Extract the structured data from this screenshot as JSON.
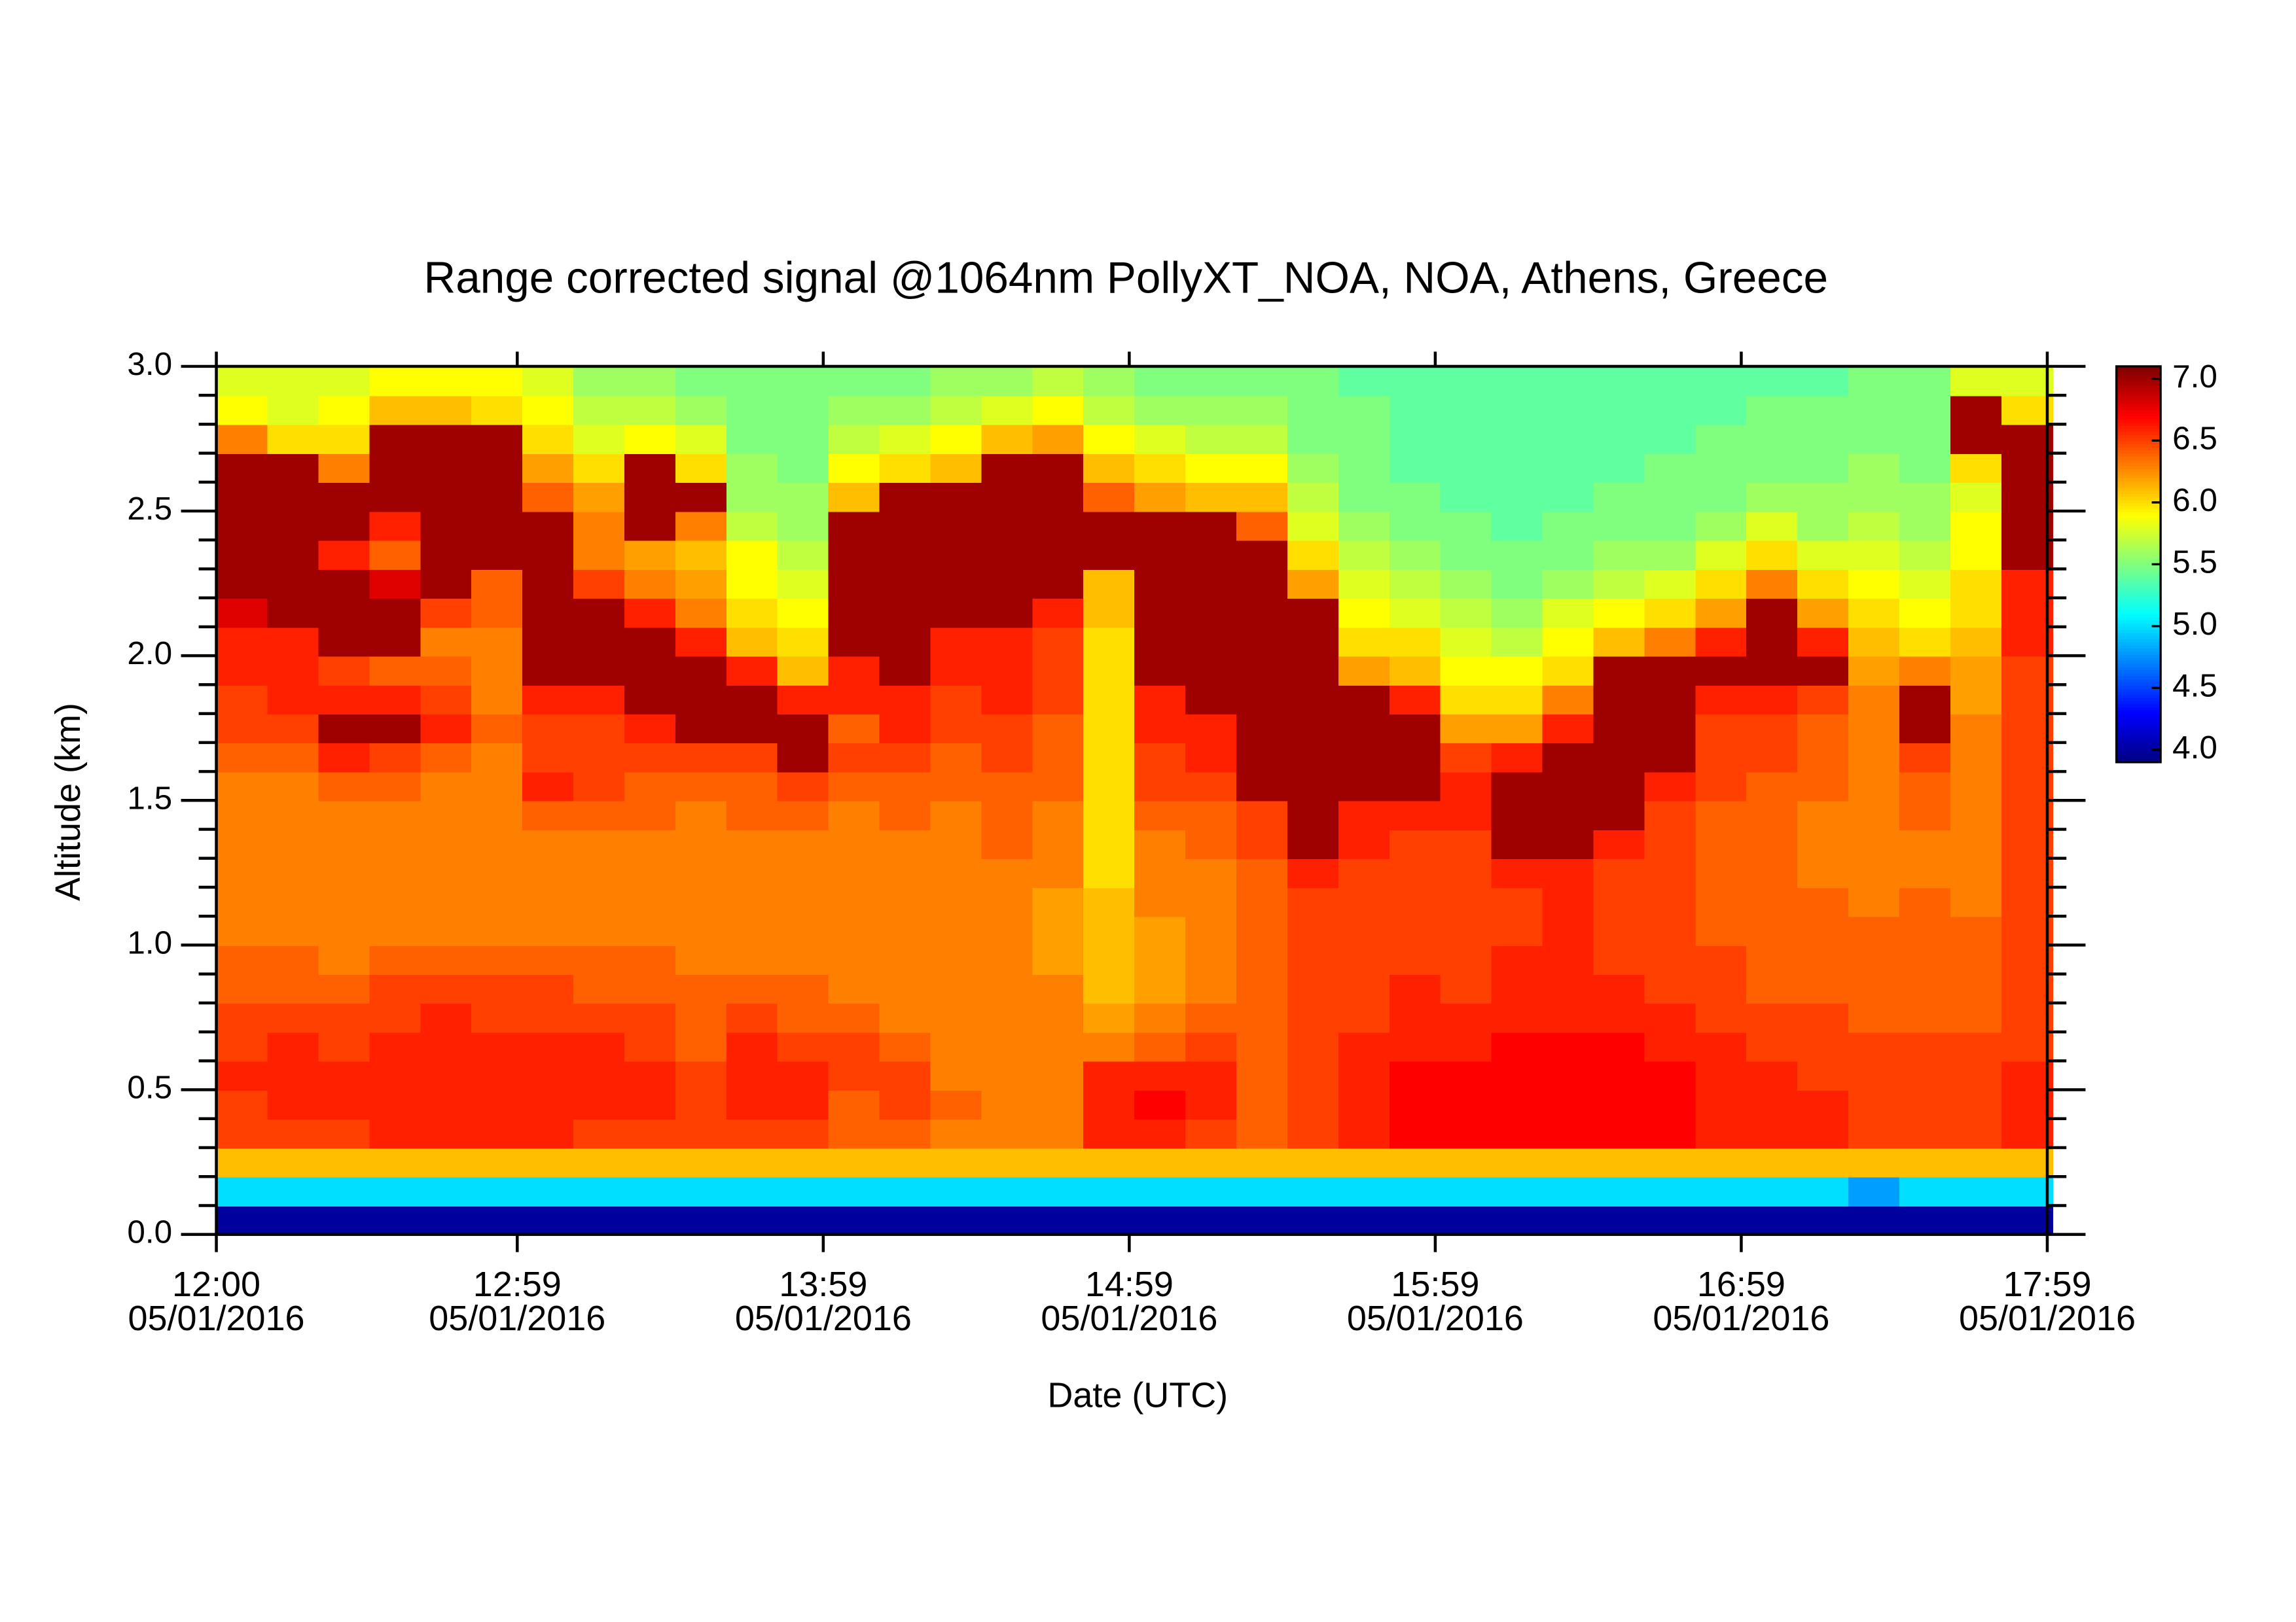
{
  "chart_data": {
    "type": "heatmap",
    "title": "Range corrected signal @1064nm  PollyXT_NOA, NOA, Athens, Greece",
    "xlabel": "Date (UTC)",
    "ylabel": "Altitude (km)",
    "colormap": "jet",
    "xlim": [
      0,
      359
    ],
    "xticks": [
      {
        "value": 0,
        "label": "12:00\n05/01/2016"
      },
      {
        "value": 59,
        "label": "12:59\n05/01/2016"
      },
      {
        "value": 119,
        "label": "13:59\n05/01/2016"
      },
      {
        "value": 179,
        "label": "14:59\n05/01/2016"
      },
      {
        "value": 239,
        "label": "15:59\n05/01/2016"
      },
      {
        "value": 299,
        "label": "16:59\n05/01/2016"
      },
      {
        "value": 359,
        "label": "17:59\n05/01/2016"
      }
    ],
    "ylim": [
      0,
      3.0
    ],
    "yticks": [
      {
        "value": 0,
        "label": "0.0"
      },
      0.5,
      {
        "value": 1,
        "label": "1.0"
      },
      1.5,
      {
        "value": 2,
        "label": "2.0"
      },
      2.5,
      {
        "value": 3,
        "label": "3.0"
      }
    ],
    "yminorticks": [
      0.1,
      0.2,
      0.3,
      0.4,
      0.6,
      0.7,
      0.8,
      0.9,
      1.1,
      1.2,
      1.3,
      1.4,
      1.6,
      1.7,
      1.8,
      1.9,
      2.1,
      2.2,
      2.3,
      2.4,
      2.6,
      2.7,
      2.8,
      2.9
    ],
    "clim": [
      3.9,
      7.1
    ],
    "cticks": [
      {
        "value": 4,
        "label": "4.0"
      },
      4.5,
      {
        "value": 5,
        "label": "5.0"
      },
      5.5,
      {
        "value": 6,
        "label": "6.0"
      },
      6.5,
      {
        "value": 7,
        "label": "7.0"
      }
    ],
    "x": [
      5,
      15,
      25,
      35,
      45,
      55,
      65,
      75,
      85,
      95,
      105,
      115,
      125,
      135,
      145,
      155,
      165,
      175,
      185,
      195,
      205,
      215,
      225,
      235,
      245,
      255,
      265,
      275,
      285,
      295,
      305,
      315,
      325,
      335,
      345,
      355
    ],
    "y": [
      0.05,
      0.15,
      0.25,
      0.35,
      0.45,
      0.55,
      0.65,
      0.75,
      0.85,
      0.95,
      1.05,
      1.15,
      1.25,
      1.35,
      1.45,
      1.55,
      1.65,
      1.75,
      1.85,
      1.95,
      2.05,
      2.15,
      2.25,
      2.35,
      2.45,
      2.55,
      2.65,
      2.75,
      2.85,
      2.95
    ],
    "values": [
      [
        4.0,
        5.0,
        6.1,
        6.5,
        6.5,
        6.6,
        6.5,
        6.5,
        6.4,
        6.4,
        6.3,
        6.3,
        6.3,
        6.3,
        6.3,
        6.3,
        6.4,
        6.5,
        6.5,
        6.6,
        6.6,
        6.8,
        7.0,
        7.0,
        7.0,
        7.0,
        7.0,
        6.3,
        5.9,
        5.8
      ],
      [
        4.0,
        5.0,
        6.1,
        6.5,
        6.6,
        6.6,
        6.6,
        6.5,
        6.4,
        6.4,
        6.3,
        6.3,
        6.3,
        6.3,
        6.3,
        6.3,
        6.4,
        6.5,
        6.6,
        6.6,
        6.6,
        7.0,
        7.0,
        7.0,
        7.0,
        7.0,
        7.0,
        6.0,
        5.8,
        5.8
      ],
      [
        4.0,
        5.0,
        6.1,
        6.5,
        6.6,
        6.6,
        6.5,
        6.5,
        6.4,
        6.3,
        6.3,
        6.3,
        6.3,
        6.3,
        6.3,
        6.4,
        6.6,
        7.0,
        6.6,
        6.5,
        7.0,
        7.0,
        7.0,
        6.6,
        7.0,
        7.0,
        6.3,
        6.0,
        5.9,
        5.8
      ],
      [
        4.0,
        5.0,
        6.1,
        6.6,
        6.6,
        6.6,
        6.6,
        6.5,
        6.5,
        6.4,
        6.3,
        6.3,
        6.3,
        6.3,
        6.3,
        6.4,
        6.5,
        7.0,
        6.6,
        6.4,
        7.0,
        7.0,
        6.8,
        6.4,
        6.6,
        7.0,
        7.0,
        7.0,
        6.1,
        5.9
      ],
      [
        4.0,
        5.0,
        6.1,
        6.6,
        6.6,
        6.6,
        6.6,
        6.6,
        6.5,
        6.4,
        6.3,
        6.3,
        6.3,
        6.3,
        6.3,
        6.3,
        6.4,
        6.6,
        6.5,
        6.4,
        6.3,
        6.5,
        7.0,
        7.0,
        7.0,
        7.0,
        7.0,
        7.0,
        6.1,
        5.9
      ],
      [
        4.0,
        5.0,
        6.1,
        6.6,
        6.6,
        6.6,
        6.6,
        6.5,
        6.5,
        6.4,
        6.3,
        6.3,
        6.3,
        6.3,
        6.3,
        6.3,
        6.3,
        6.4,
        6.3,
        6.3,
        6.3,
        6.4,
        6.4,
        7.0,
        7.0,
        7.0,
        7.0,
        7.0,
        6.0,
        5.9
      ],
      [
        4.0,
        5.0,
        6.1,
        6.6,
        6.6,
        6.6,
        6.6,
        6.5,
        6.5,
        6.4,
        6.3,
        6.3,
        6.3,
        6.3,
        6.4,
        6.6,
        6.5,
        6.5,
        6.6,
        7.0,
        7.0,
        7.0,
        7.0,
        7.0,
        7.0,
        6.4,
        6.2,
        6.0,
        5.9,
        5.8
      ],
      [
        4.0,
        5.0,
        6.1,
        6.5,
        6.6,
        6.6,
        6.6,
        6.5,
        6.4,
        6.4,
        6.3,
        6.3,
        6.3,
        6.3,
        6.4,
        6.5,
        6.5,
        6.5,
        6.6,
        7.0,
        7.0,
        7.0,
        6.5,
        6.3,
        6.3,
        6.2,
        6.0,
        5.8,
        5.7,
        5.6
      ],
      [
        4.0,
        5.0,
        6.1,
        6.5,
        6.6,
        6.6,
        6.5,
        6.5,
        6.4,
        6.4,
        6.3,
        6.3,
        6.3,
        6.3,
        6.4,
        6.4,
        6.5,
        6.6,
        7.0,
        7.0,
        7.0,
        6.6,
        6.3,
        6.2,
        7.0,
        7.0,
        7.0,
        5.9,
        5.7,
        5.6
      ],
      [
        4.0,
        5.0,
        6.1,
        6.5,
        6.5,
        6.5,
        6.4,
        6.4,
        6.4,
        6.3,
        6.3,
        6.3,
        6.3,
        6.3,
        6.3,
        6.4,
        6.5,
        7.0,
        7.0,
        7.0,
        6.6,
        6.3,
        6.2,
        6.1,
        6.3,
        7.0,
        6.0,
        5.8,
        5.6,
        5.5
      ],
      [
        4.0,
        5.0,
        6.1,
        6.5,
        6.6,
        6.6,
        6.6,
        6.5,
        6.4,
        6.3,
        6.3,
        6.3,
        6.3,
        6.3,
        6.4,
        6.4,
        6.5,
        7.0,
        7.0,
        6.6,
        6.1,
        6.0,
        5.9,
        5.9,
        5.7,
        5.6,
        5.6,
        5.5,
        5.5,
        5.5
      ],
      [
        4.0,
        5.0,
        6.1,
        6.5,
        6.6,
        6.6,
        6.5,
        6.4,
        6.4,
        6.3,
        6.3,
        6.3,
        6.3,
        6.3,
        6.4,
        6.5,
        7.0,
        7.0,
        6.6,
        6.1,
        6.0,
        5.9,
        5.8,
        5.7,
        5.6,
        5.6,
        5.5,
        5.5,
        5.5,
        5.5
      ],
      [
        4.0,
        5.0,
        6.1,
        6.4,
        6.4,
        6.5,
        6.5,
        6.4,
        6.3,
        6.3,
        6.3,
        6.3,
        6.3,
        6.3,
        6.3,
        6.4,
        6.5,
        6.4,
        6.6,
        6.6,
        7.0,
        7.0,
        7.0,
        7.0,
        7.0,
        6.1,
        5.9,
        5.7,
        5.6,
        5.5
      ],
      [
        4.0,
        5.0,
        6.1,
        6.4,
        6.5,
        6.5,
        6.4,
        6.3,
        6.3,
        6.3,
        6.3,
        6.3,
        6.3,
        6.3,
        6.4,
        6.4,
        6.5,
        6.6,
        6.6,
        7.0,
        7.0,
        7.0,
        7.0,
        7.0,
        7.0,
        7.0,
        6.0,
        5.8,
        5.6,
        5.5
      ],
      [
        4.0,
        5.0,
        6.1,
        6.3,
        6.4,
        6.3,
        6.3,
        6.3,
        6.3,
        6.3,
        6.3,
        6.3,
        6.3,
        6.3,
        6.3,
        6.4,
        6.4,
        6.5,
        6.5,
        6.6,
        6.6,
        7.0,
        7.0,
        7.0,
        7.0,
        7.0,
        6.1,
        5.9,
        5.7,
        5.6
      ],
      [
        4.0,
        5.0,
        6.1,
        6.3,
        6.3,
        6.3,
        6.3,
        6.3,
        6.3,
        6.3,
        6.3,
        6.3,
        6.3,
        6.4,
        6.4,
        6.4,
        6.5,
        6.5,
        6.6,
        6.6,
        6.6,
        7.0,
        7.0,
        7.0,
        7.0,
        7.0,
        7.0,
        6.1,
        5.8,
        5.6
      ],
      [
        4.0,
        5.0,
        6.1,
        6.3,
        6.3,
        6.3,
        6.3,
        6.3,
        6.3,
        6.2,
        6.2,
        6.2,
        6.3,
        6.3,
        6.3,
        6.4,
        6.4,
        6.4,
        6.5,
        6.5,
        6.5,
        6.6,
        7.0,
        7.0,
        7.0,
        7.0,
        7.0,
        6.2,
        5.9,
        5.7
      ],
      [
        4.0,
        5.0,
        6.1,
        6.6,
        6.6,
        6.6,
        6.3,
        6.2,
        6.1,
        6.1,
        6.1,
        6.1,
        6.0,
        6.0,
        6.0,
        6.0,
        6.0,
        6.0,
        6.0,
        6.0,
        6.0,
        6.1,
        6.1,
        7.0,
        7.0,
        6.4,
        6.1,
        5.9,
        5.7,
        5.6
      ],
      [
        4.0,
        5.0,
        6.1,
        6.6,
        6.7,
        6.6,
        6.4,
        6.3,
        6.2,
        6.2,
        6.2,
        6.3,
        6.3,
        6.3,
        6.4,
        6.5,
        6.5,
        6.6,
        6.6,
        7.0,
        7.0,
        7.0,
        7.0,
        7.0,
        7.0,
        6.2,
        6.0,
        5.8,
        5.6,
        5.5
      ],
      [
        4.0,
        5.0,
        6.1,
        6.5,
        6.6,
        6.6,
        6.5,
        6.4,
        6.3,
        6.3,
        6.3,
        6.3,
        6.3,
        6.4,
        6.4,
        6.5,
        6.6,
        6.6,
        7.0,
        7.0,
        7.0,
        7.0,
        7.0,
        7.0,
        7.0,
        6.1,
        5.9,
        5.7,
        5.6,
        5.5
      ],
      [
        4.0,
        5.0,
        6.1,
        6.4,
        6.4,
        6.4,
        6.4,
        6.4,
        6.4,
        6.4,
        6.4,
        6.4,
        6.4,
        6.5,
        6.5,
        7.0,
        7.0,
        7.0,
        7.0,
        7.0,
        7.0,
        7.0,
        7.0,
        7.0,
        6.4,
        6.1,
        5.9,
        5.7,
        5.6,
        5.5
      ],
      [
        4.0,
        5.0,
        6.1,
        6.5,
        6.5,
        6.5,
        6.5,
        6.5,
        6.5,
        6.5,
        6.5,
        6.5,
        6.6,
        7.0,
        7.0,
        7.0,
        7.0,
        7.0,
        7.0,
        7.0,
        7.0,
        7.0,
        6.2,
        6.0,
        5.8,
        5.7,
        5.6,
        5.5,
        5.5,
        5.5
      ],
      [
        4.0,
        5.0,
        6.1,
        6.6,
        6.6,
        6.6,
        6.6,
        6.5,
        6.5,
        6.5,
        6.5,
        6.5,
        6.5,
        6.6,
        6.6,
        7.0,
        7.0,
        7.0,
        7.0,
        6.2,
        6.0,
        5.9,
        5.8,
        5.7,
        5.6,
        5.5,
        5.5,
        5.5,
        5.5,
        5.4
      ],
      [
        4.0,
        5.0,
        6.1,
        6.7,
        6.7,
        6.7,
        6.6,
        6.6,
        6.6,
        6.5,
        6.5,
        6.5,
        6.5,
        6.5,
        6.6,
        7.0,
        7.0,
        7.0,
        6.6,
        6.1,
        6.0,
        5.8,
        5.7,
        5.6,
        5.5,
        5.5,
        5.4,
        5.4,
        5.4,
        5.4
      ],
      [
        4.0,
        5.0,
        6.1,
        6.7,
        6.7,
        6.7,
        6.6,
        6.6,
        6.5,
        6.5,
        6.5,
        6.5,
        6.5,
        6.5,
        6.6,
        6.6,
        6.5,
        6.2,
        6.0,
        5.9,
        5.8,
        5.7,
        5.6,
        5.5,
        5.5,
        5.4,
        5.4,
        5.4,
        5.4,
        5.4
      ],
      [
        4.0,
        5.0,
        6.1,
        6.7,
        6.7,
        6.7,
        6.7,
        6.6,
        6.6,
        6.6,
        6.5,
        6.5,
        6.6,
        7.0,
        7.0,
        7.0,
        6.6,
        6.2,
        6.0,
        5.9,
        5.7,
        5.6,
        5.5,
        5.5,
        5.4,
        5.4,
        5.4,
        5.4,
        5.4,
        5.4
      ],
      [
        4.0,
        5.0,
        6.1,
        6.7,
        6.7,
        6.7,
        6.7,
        6.6,
        6.6,
        6.6,
        6.6,
        6.6,
        6.6,
        7.0,
        7.0,
        7.0,
        7.0,
        6.6,
        6.3,
        6.0,
        5.9,
        5.8,
        5.6,
        5.5,
        5.5,
        5.4,
        5.4,
        5.4,
        5.4,
        5.4
      ],
      [
        4.0,
        5.0,
        6.1,
        6.7,
        6.7,
        6.7,
        6.7,
        6.6,
        6.6,
        6.5,
        6.5,
        6.5,
        6.5,
        6.6,
        7.0,
        7.0,
        7.0,
        7.0,
        7.0,
        7.0,
        6.1,
        5.9,
        5.7,
        5.6,
        5.5,
        5.5,
        5.4,
        5.4,
        5.4,
        5.4
      ],
      [
        4.0,
        5.0,
        6.1,
        6.7,
        6.7,
        6.7,
        6.6,
        6.6,
        6.5,
        6.5,
        6.5,
        6.5,
        6.5,
        6.5,
        6.5,
        6.6,
        7.0,
        7.0,
        7.0,
        7.0,
        6.3,
        6.0,
        5.8,
        5.6,
        5.5,
        5.5,
        5.5,
        5.4,
        5.4,
        5.4
      ],
      [
        4.0,
        5.0,
        6.1,
        6.6,
        6.6,
        6.6,
        6.6,
        6.5,
        6.5,
        6.5,
        6.4,
        6.4,
        6.4,
        6.4,
        6.4,
        6.5,
        6.5,
        6.5,
        6.6,
        7.0,
        6.6,
        6.2,
        6.0,
        5.8,
        5.6,
        5.5,
        5.5,
        5.5,
        5.4,
        5.4
      ],
      [
        4.0,
        5.0,
        6.1,
        6.6,
        6.6,
        6.6,
        6.5,
        6.5,
        6.4,
        6.4,
        6.4,
        6.4,
        6.4,
        6.4,
        6.4,
        6.4,
        6.5,
        6.5,
        6.6,
        7.0,
        7.0,
        7.0,
        6.3,
        6.0,
        5.8,
        5.6,
        5.5,
        5.5,
        5.5,
        5.4
      ],
      [
        4.0,
        5.0,
        6.1,
        6.6,
        6.6,
        6.5,
        6.5,
        6.5,
        6.4,
        6.4,
        6.4,
        6.4,
        6.3,
        6.3,
        6.3,
        6.4,
        6.4,
        6.4,
        6.5,
        7.0,
        6.6,
        6.2,
        6.0,
        5.8,
        5.6,
        5.6,
        5.5,
        5.5,
        5.5,
        5.4
      ],
      [
        4.0,
        4.8,
        6.1,
        6.5,
        6.5,
        6.5,
        6.5,
        6.4,
        6.4,
        6.4,
        6.4,
        6.3,
        6.3,
        6.3,
        6.3,
        6.3,
        6.3,
        6.3,
        6.3,
        6.2,
        6.1,
        6.0,
        5.9,
        5.8,
        5.7,
        5.6,
        5.6,
        5.5,
        5.5,
        5.5
      ],
      [
        4.0,
        5.0,
        6.1,
        6.5,
        6.5,
        6.5,
        6.5,
        6.4,
        6.4,
        6.4,
        6.4,
        6.4,
        6.3,
        6.3,
        6.4,
        6.4,
        6.5,
        7.0,
        7.0,
        6.3,
        6.0,
        5.9,
        5.8,
        5.7,
        5.6,
        5.6,
        5.5,
        5.5,
        5.5,
        5.5
      ],
      [
        4.0,
        5.0,
        6.1,
        6.5,
        6.5,
        6.5,
        6.5,
        6.4,
        6.4,
        6.4,
        6.4,
        6.3,
        6.3,
        6.3,
        6.3,
        6.3,
        6.3,
        6.3,
        6.2,
        6.2,
        6.1,
        6.0,
        6.0,
        5.9,
        5.9,
        5.8,
        6.0,
        7.0,
        7.0,
        5.8
      ],
      [
        4.0,
        5.0,
        6.1,
        6.6,
        6.6,
        6.6,
        6.5,
        6.5,
        6.5,
        6.5,
        6.5,
        6.5,
        6.5,
        6.5,
        6.5,
        6.5,
        6.5,
        6.5,
        6.5,
        6.5,
        6.6,
        6.6,
        6.6,
        7.0,
        7.0,
        7.0,
        7.0,
        7.0,
        6.0,
        5.8
      ]
    ]
  }
}
